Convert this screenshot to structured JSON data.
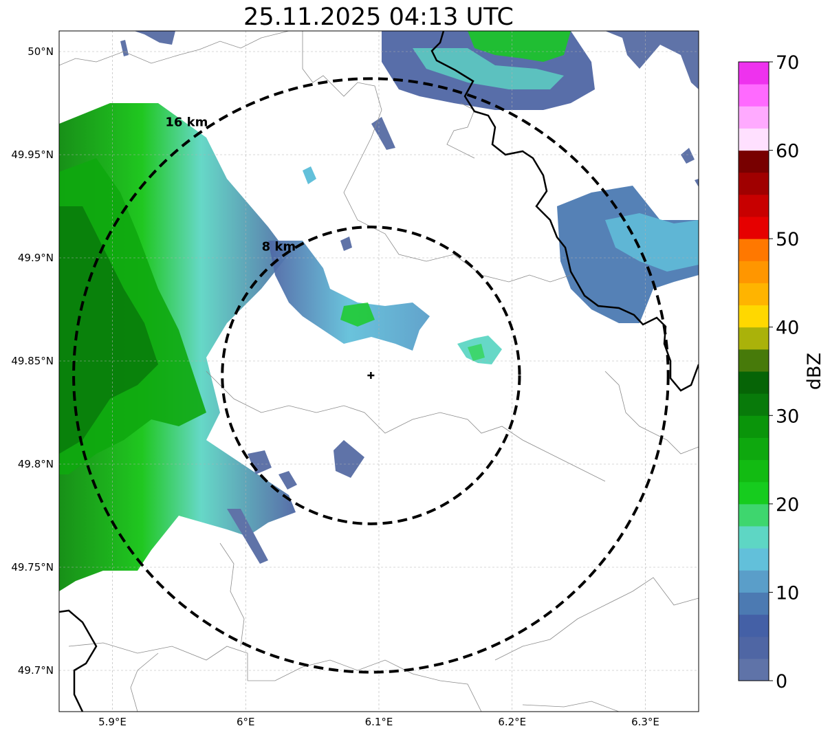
{
  "title": "25.11.2025 04:13 UTC",
  "map": {
    "lon_range": [
      5.86,
      6.34
    ],
    "lat_range": [
      49.68,
      50.01
    ],
    "lon_ticks": [
      {
        "value": 5.9,
        "label": "5.9°E"
      },
      {
        "value": 6.0,
        "label": "6°E"
      },
      {
        "value": 6.1,
        "label": "6.1°E"
      },
      {
        "value": 6.2,
        "label": "6.2°E"
      },
      {
        "value": 6.3,
        "label": "6.3°E"
      }
    ],
    "lat_ticks": [
      {
        "value": 50.0,
        "label": "50°N"
      },
      {
        "value": 49.95,
        "label": "49.95°N"
      },
      {
        "value": 49.9,
        "label": "49.9°N"
      },
      {
        "value": 49.85,
        "label": "49.85°N"
      },
      {
        "value": 49.8,
        "label": "49.8°N"
      },
      {
        "value": 49.75,
        "label": "49.75°N"
      },
      {
        "value": 49.7,
        "label": "49.7°N"
      }
    ],
    "gridlines": true,
    "radar_site": {
      "lon": 6.094,
      "lat": 49.843
    },
    "range_rings": [
      {
        "label": "8 km",
        "radius_km": 8
      },
      {
        "label": "16 km",
        "radius_km": 16
      }
    ]
  },
  "colorbar": {
    "label": "dBZ",
    "min": 0,
    "max": 70,
    "tick_labels": [
      "0",
      "10",
      "20",
      "30",
      "40",
      "50",
      "60",
      "70"
    ],
    "colors": [
      "#5f73a8",
      "#4f66a4",
      "#4460a6",
      "#4c7ab2",
      "#5a9ec9",
      "#62c0da",
      "#5ed6c4",
      "#3ed66e",
      "#16cc1e",
      "#12bb12",
      "#0ea80e",
      "#0a950a",
      "#087a0a",
      "#066406",
      "#477a0a",
      "#aab20a",
      "#ffd800",
      "#ffb400",
      "#ff9600",
      "#ff7800",
      "#e60000",
      "#c80000",
      "#a00000",
      "#780000",
      "#ffe0ff",
      "#ffaaff",
      "#ff6aff",
      "#ee32ee"
    ]
  },
  "echo_areas": [
    {
      "name": "west-band",
      "max_dbz": 34
    },
    {
      "name": "central-line",
      "max_dbz": 22
    },
    {
      "name": "north-cell",
      "max_dbz": 26
    },
    {
      "name": "east-cell",
      "max_dbz": 17
    },
    {
      "name": "small-cell-east",
      "max_dbz": 22
    },
    {
      "name": "small-cell-south",
      "max_dbz": 8
    }
  ]
}
